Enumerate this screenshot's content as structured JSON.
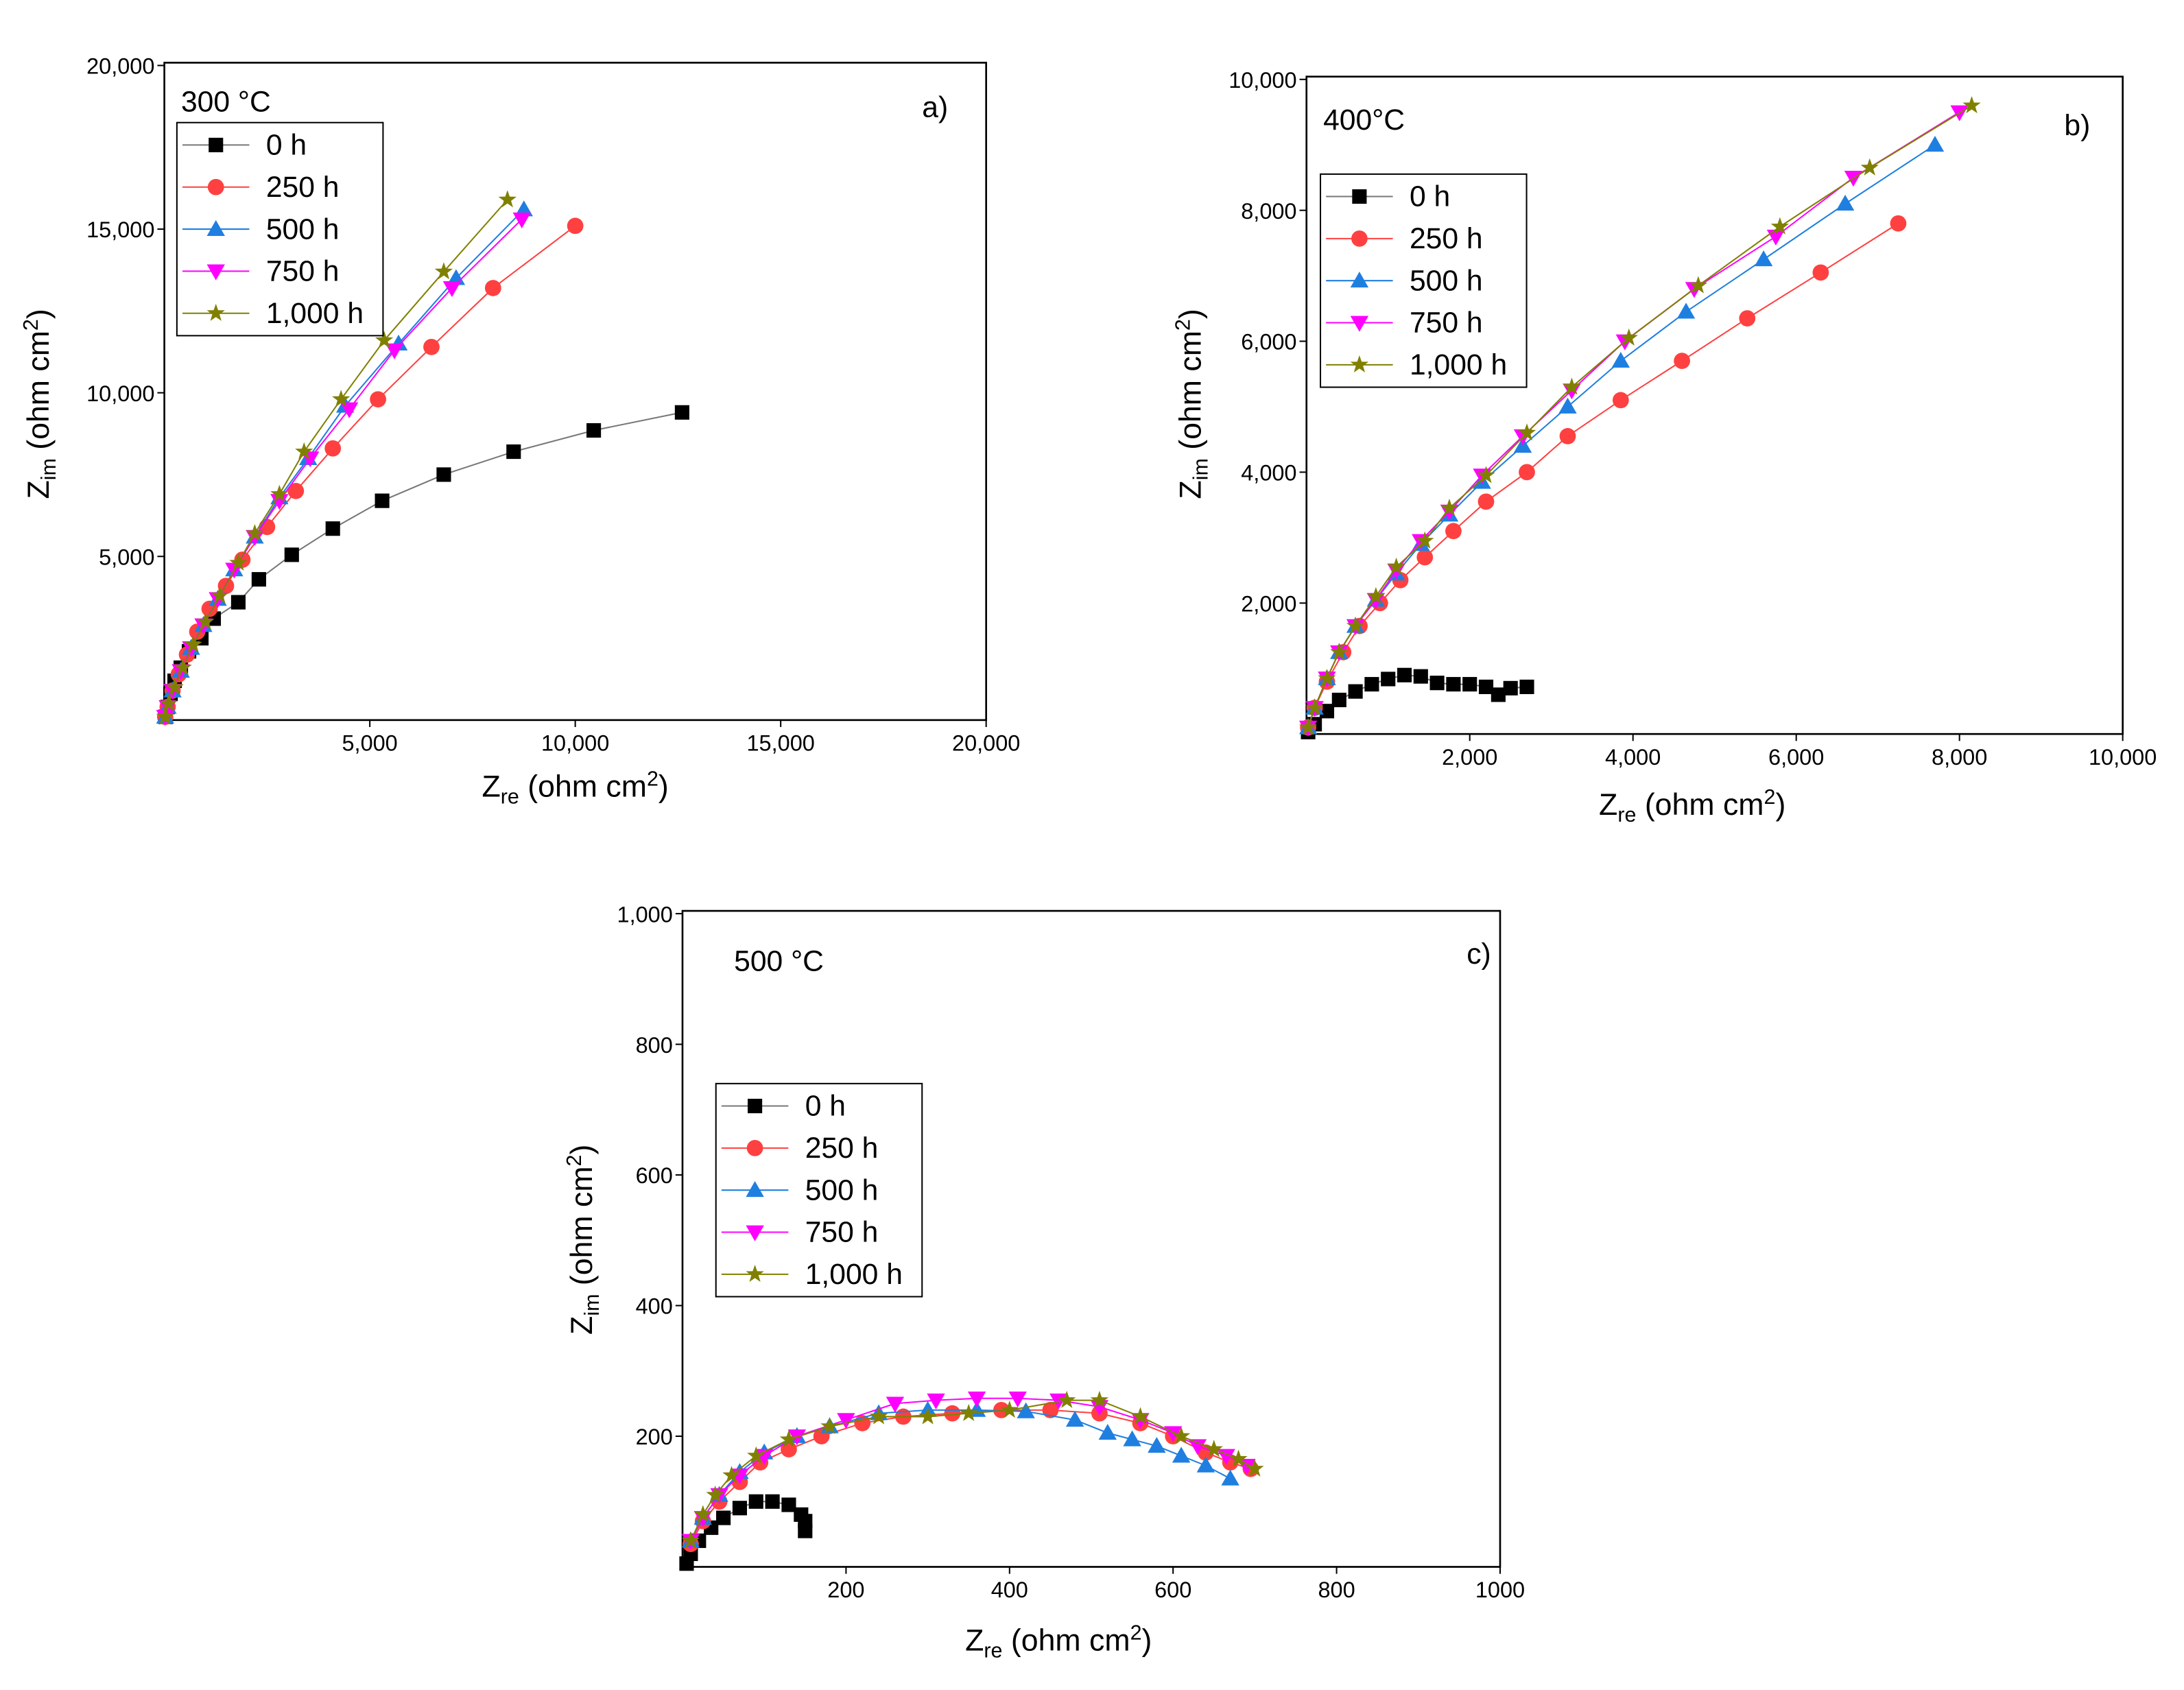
{
  "chart_data": [
    {
      "type": "scatter",
      "annotations": [
        "300 °C",
        "a)"
      ],
      "xlabel": [
        "Z",
        "re",
        " (ohm cm",
        "2",
        ")"
      ],
      "ylabel": [
        "Z",
        "im",
        " (ohm cm",
        "2",
        ")"
      ],
      "xlim": [
        0,
        20000
      ],
      "ylim": [
        0,
        20000
      ],
      "xticks": [
        {
          "value": 5000,
          "label": "5,000"
        },
        {
          "value": 10000,
          "label": "10,000"
        },
        {
          "value": 15000,
          "label": "15,000"
        },
        {
          "value": 20000,
          "label": "20,000"
        }
      ],
      "yticks": [
        {
          "value": 5000,
          "label": "5,000"
        },
        {
          "value": 10000,
          "label": "10,000"
        },
        {
          "value": 15000,
          "label": "15,000"
        },
        {
          "value": 20000,
          "label": "20,000"
        }
      ],
      "series": [
        {
          "name": "0 h",
          "color": "#000000",
          "line_color": "#777777",
          "marker": "square",
          "x": [
            30,
            80,
            150,
            250,
            400,
            600,
            900,
            1200,
            1800,
            2300,
            3100,
            4100,
            5300,
            6800,
            8500,
            10450,
            12600
          ],
          "values": [
            100,
            400,
            800,
            1200,
            1600,
            2100,
            2500,
            3100,
            3600,
            4300,
            5050,
            5850,
            6700,
            7500,
            8200,
            8850,
            9400
          ]
        },
        {
          "name": "250 h",
          "color": "#ff4040",
          "line_color": "#ff4040",
          "marker": "circle",
          "x": [
            20,
            80,
            200,
            350,
            550,
            800,
            1100,
            1500,
            1900,
            2500,
            3200,
            4100,
            5200,
            6500,
            8000,
            10000
          ],
          "values": [
            100,
            400,
            900,
            1400,
            2000,
            2700,
            3400,
            4100,
            4900,
            5900,
            7000,
            8300,
            9800,
            11400,
            13200,
            15100
          ]
        },
        {
          "name": "500 h",
          "color": "#1f7fe0",
          "line_color": "#1f7fe0",
          "marker": "triangle-up",
          "x": [
            20,
            80,
            200,
            400,
            650,
            950,
            1300,
            1700,
            2200,
            2800,
            3500,
            4400,
            5700,
            7100,
            8750
          ],
          "values": [
            100,
            400,
            900,
            1500,
            2200,
            2900,
            3700,
            4600,
            5600,
            6800,
            8000,
            9600,
            11500,
            13500,
            15600
          ]
        },
        {
          "name": "750 h",
          "color": "#ff00ff",
          "line_color": "#ff00ff",
          "marker": "triangle-down",
          "x": [
            20,
            80,
            200,
            400,
            650,
            950,
            1300,
            1700,
            2200,
            2800,
            3550,
            4500,
            5600,
            7000,
            8700
          ],
          "values": [
            100,
            400,
            900,
            1500,
            2200,
            2900,
            3700,
            4600,
            5600,
            6700,
            8000,
            9500,
            11300,
            13200,
            15300
          ]
        },
        {
          "name": "1,000 h",
          "color": "#808000",
          "line_color": "#808000",
          "marker": "star",
          "x": [
            20,
            100,
            250,
            450,
            700,
            1000,
            1350,
            1800,
            2200,
            2800,
            3400,
            4300,
            5350,
            6800,
            8350
          ],
          "values": [
            100,
            500,
            1000,
            1600,
            2300,
            3000,
            3800,
            4800,
            5700,
            6900,
            8200,
            9800,
            11600,
            13700,
            15900
          ]
        }
      ]
    },
    {
      "type": "scatter",
      "annotations": [
        "400°C",
        "b)"
      ],
      "xlabel": [
        "Z",
        "re",
        " (ohm cm",
        "2",
        ")"
      ],
      "ylabel": [
        "Z",
        "im",
        " (ohm cm",
        "2",
        ")"
      ],
      "xlim": [
        0,
        10000
      ],
      "ylim": [
        0,
        10000
      ],
      "xticks": [
        {
          "value": 2000,
          "label": "2,000"
        },
        {
          "value": 4000,
          "label": "4,000"
        },
        {
          "value": 6000,
          "label": "6,000"
        },
        {
          "value": 8000,
          "label": "8,000"
        },
        {
          "value": 10000,
          "label": "10,000"
        }
      ],
      "yticks": [
        {
          "value": 2000,
          "label": "2,000"
        },
        {
          "value": 4000,
          "label": "4,000"
        },
        {
          "value": 6000,
          "label": "6,000"
        },
        {
          "value": 8000,
          "label": "8,000"
        },
        {
          "value": 10000,
          "label": "10,000"
        }
      ],
      "series": [
        {
          "name": "0 h",
          "color": "#000000",
          "line_color": "#777777",
          "marker": "square",
          "x": [
            20,
            100,
            250,
            400,
            600,
            800,
            1000,
            1200,
            1400,
            1600,
            1800,
            2000,
            2200,
            2350,
            2500,
            2700
          ],
          "values": [
            30,
            150,
            350,
            520,
            650,
            760,
            840,
            900,
            880,
            780,
            760,
            760,
            720,
            600,
            700,
            720
          ]
        },
        {
          "name": "250 h",
          "color": "#ff4040",
          "line_color": "#ff4040",
          "marker": "circle",
          "x": [
            20,
            100,
            250,
            450,
            650,
            900,
            1150,
            1450,
            1800,
            2200,
            2700,
            3200,
            3850,
            4600,
            5400,
            6300,
            7250
          ],
          "values": [
            100,
            400,
            800,
            1250,
            1650,
            2000,
            2350,
            2700,
            3100,
            3550,
            4000,
            4550,
            5100,
            5700,
            6350,
            7050,
            7800
          ]
        },
        {
          "name": "500 h",
          "color": "#1f7fe0",
          "line_color": "#1f7fe0",
          "marker": "triangle-up",
          "x": [
            20,
            100,
            250,
            400,
            600,
            850,
            1100,
            1400,
            1750,
            2150,
            2650,
            3200,
            3850,
            4650,
            5600,
            6600,
            7700
          ],
          "values": [
            100,
            400,
            850,
            1250,
            1650,
            2050,
            2450,
            2900,
            3350,
            3850,
            4400,
            5000,
            5700,
            6450,
            7250,
            8100,
            9000
          ]
        },
        {
          "name": "750 h",
          "color": "#ff00ff",
          "line_color": "#ff00ff",
          "marker": "triangle-down",
          "x": [
            20,
            100,
            250,
            400,
            600,
            850,
            1100,
            1400,
            1750,
            2150,
            2650,
            3250,
            3900,
            4750,
            5750,
            6700,
            8000
          ],
          "values": [
            100,
            400,
            850,
            1250,
            1650,
            2050,
            2500,
            2950,
            3400,
            3950,
            4550,
            5250,
            6000,
            6800,
            7600,
            8500,
            9500
          ]
        },
        {
          "name": "1,000 h",
          "color": "#808000",
          "line_color": "#808000",
          "marker": "star",
          "x": [
            20,
            100,
            250,
            400,
            600,
            850,
            1100,
            1450,
            1750,
            2200,
            2700,
            3250,
            3950,
            4800,
            5800,
            6900,
            8150
          ],
          "values": [
            100,
            400,
            850,
            1250,
            1650,
            2100,
            2550,
            2950,
            3450,
            3950,
            4600,
            5300,
            6050,
            6850,
            7750,
            8650,
            9600
          ]
        }
      ]
    },
    {
      "type": "scatter",
      "annotations": [
        "500 °C",
        "c)"
      ],
      "xlabel": [
        "Z",
        "re",
        " (ohm cm",
        "2",
        ")"
      ],
      "ylabel": [
        "Z",
        "im",
        " (ohm cm",
        "2",
        ")"
      ],
      "xlim": [
        0,
        1000
      ],
      "ylim": [
        0,
        1000
      ],
      "xticks": [
        200,
        400,
        600,
        800,
        1000
      ],
      "yticks": [
        200,
        400,
        600,
        800,
        {
          "value": 1000,
          "label": "1,000"
        }
      ],
      "series": [
        {
          "name": "0 h",
          "color": "#000000",
          "line_color": "#777777",
          "marker": "square",
          "x": [
            5,
            10,
            20,
            35,
            50,
            70,
            90,
            110,
            130,
            145,
            150,
            150
          ],
          "values": [
            5,
            20,
            40,
            60,
            75,
            90,
            100,
            100,
            95,
            80,
            70,
            55
          ]
        },
        {
          "name": "250 h",
          "color": "#ff4040",
          "line_color": "#ff4040",
          "marker": "circle",
          "x": [
            10,
            25,
            45,
            70,
            95,
            130,
            170,
            220,
            270,
            330,
            390,
            450,
            510,
            560,
            600,
            640,
            670,
            695
          ],
          "values": [
            35,
            70,
            100,
            130,
            160,
            180,
            200,
            220,
            230,
            235,
            240,
            240,
            235,
            220,
            200,
            175,
            160,
            150
          ]
        },
        {
          "name": "500 h",
          "color": "#1f7fe0",
          "line_color": "#1f7fe0",
          "marker": "triangle-up",
          "x": [
            10,
            25,
            45,
            70,
            100,
            140,
            180,
            240,
            300,
            360,
            420,
            480,
            520,
            550,
            580,
            610,
            640,
            670
          ],
          "values": [
            40,
            75,
            110,
            145,
            175,
            200,
            215,
            235,
            240,
            240,
            238,
            225,
            205,
            195,
            185,
            170,
            155,
            135
          ]
        },
        {
          "name": "750 h",
          "color": "#ff00ff",
          "line_color": "#ff00ff",
          "marker": "triangle-down",
          "x": [
            10,
            25,
            45,
            70,
            100,
            140,
            200,
            260,
            310,
            360,
            410,
            460,
            510,
            560,
            600,
            630,
            665,
            690
          ],
          "values": [
            40,
            75,
            110,
            140,
            170,
            200,
            225,
            250,
            255,
            258,
            258,
            255,
            245,
            225,
            205,
            185,
            170,
            155
          ]
        },
        {
          "name": "1,000 h",
          "color": "#808000",
          "line_color": "#808000",
          "marker": "star",
          "x": [
            10,
            25,
            40,
            60,
            90,
            130,
            180,
            240,
            300,
            350,
            400,
            470,
            510,
            560,
            610,
            650,
            680,
            700
          ],
          "values": [
            40,
            80,
            110,
            140,
            170,
            195,
            215,
            230,
            230,
            235,
            240,
            255,
            255,
            230,
            200,
            180,
            165,
            150
          ]
        }
      ]
    }
  ]
}
